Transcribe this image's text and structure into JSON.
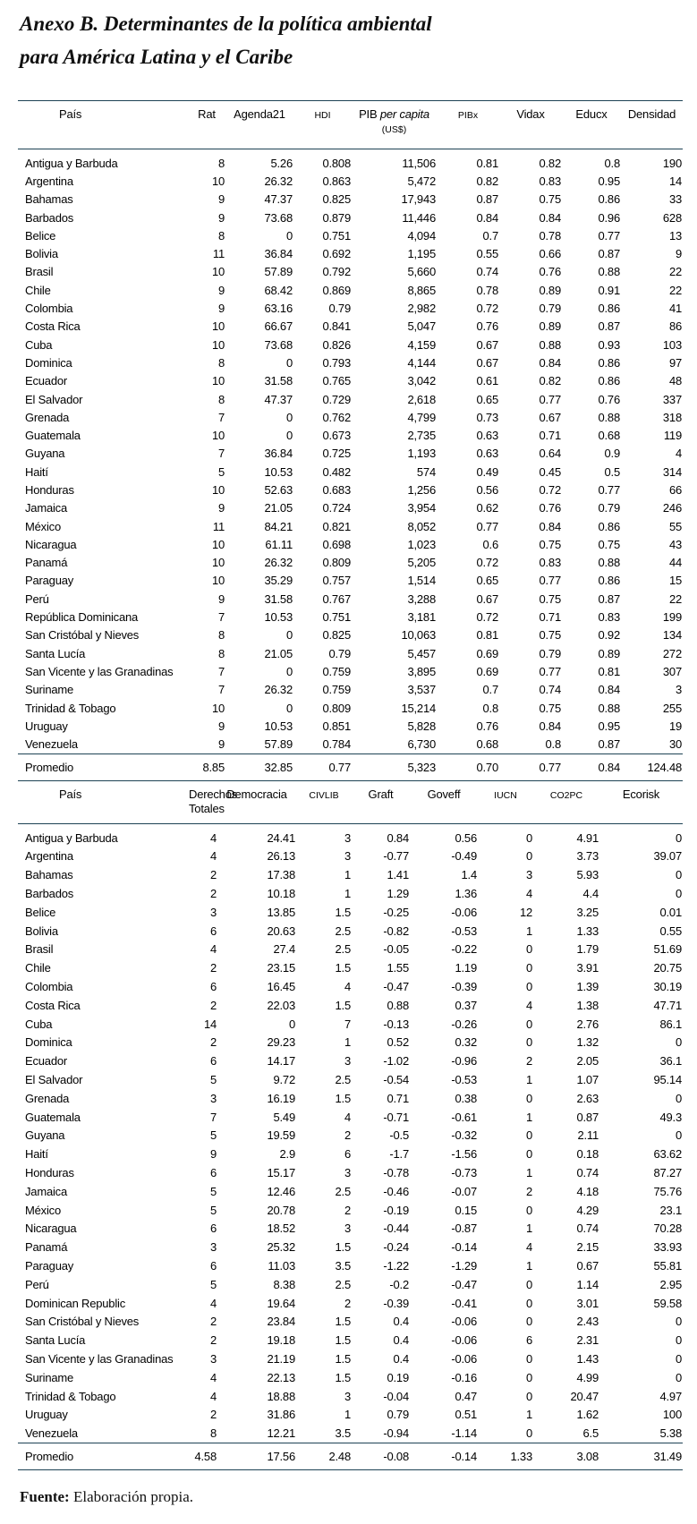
{
  "title": {
    "line1": "Anexo B. Determinantes de la política ambiental",
    "line2": "para América Latina y el Caribe"
  },
  "colors": {
    "rule": "#1d4254",
    "text": "#000000",
    "background": "#ffffff"
  },
  "table1": {
    "col_pais": "País",
    "col_rat": "Rat",
    "col_agenda": "Agenda21",
    "col_hdi": "HDI",
    "col_pib": "PIB",
    "col_pib_italic": "per capita",
    "col_pib_unit": "(US$)",
    "col_pibx": "PIBx",
    "col_vidax": "Vidax",
    "col_educx": "Educx",
    "col_densidad": "Densidad",
    "rows": [
      [
        "Antigua y Barbuda",
        "8",
        "5.26",
        "0.808",
        "11,506",
        "0.81",
        "0.82",
        "0.8",
        "190"
      ],
      [
        "Argentina",
        "10",
        "26.32",
        "0.863",
        "5,472",
        "0.82",
        "0.83",
        "0.95",
        "14"
      ],
      [
        "Bahamas",
        "9",
        "47.37",
        "0.825",
        "17,943",
        "0.87",
        "0.75",
        "0.86",
        "33"
      ],
      [
        "Barbados",
        "9",
        "73.68",
        "0.879",
        "11,446",
        "0.84",
        "0.84",
        "0.96",
        "628"
      ],
      [
        "Belice",
        "8",
        "0",
        "0.751",
        "4,094",
        "0.7",
        "0.78",
        "0.77",
        "13"
      ],
      [
        "Bolivia",
        "11",
        "36.84",
        "0.692",
        "1,195",
        "0.55",
        "0.66",
        "0.87",
        "9"
      ],
      [
        "Brasil",
        "10",
        "57.89",
        "0.792",
        "5,660",
        "0.74",
        "0.76",
        "0.88",
        "22"
      ],
      [
        "Chile",
        "9",
        "68.42",
        "0.869",
        "8,865",
        "0.78",
        "0.89",
        "0.91",
        "22"
      ],
      [
        "Colombia",
        "9",
        "63.16",
        "0.79",
        "2,982",
        "0.72",
        "0.79",
        "0.86",
        "41"
      ],
      [
        "Costa Rica",
        "10",
        "66.67",
        "0.841",
        "5,047",
        "0.76",
        "0.89",
        "0.87",
        "86"
      ],
      [
        "Cuba",
        "10",
        "73.68",
        "0.826",
        "4,159",
        "0.67",
        "0.88",
        "0.93",
        "103"
      ],
      [
        "Dominica",
        "8",
        "0",
        "0.793",
        "4,144",
        "0.67",
        "0.84",
        "0.86",
        "97"
      ],
      [
        "Ecuador",
        "10",
        "31.58",
        "0.765",
        "3,042",
        "0.61",
        "0.82",
        "0.86",
        "48"
      ],
      [
        "El Salvador",
        "8",
        "47.37",
        "0.729",
        "2,618",
        "0.65",
        "0.77",
        "0.76",
        "337"
      ],
      [
        "Grenada",
        "7",
        "0",
        "0.762",
        "4,799",
        "0.73",
        "0.67",
        "0.88",
        "318"
      ],
      [
        "Guatemala",
        "10",
        "0",
        "0.673",
        "2,735",
        "0.63",
        "0.71",
        "0.68",
        "119"
      ],
      [
        "Guyana",
        "7",
        "36.84",
        "0.725",
        "1,193",
        "0.63",
        "0.64",
        "0.9",
        "4"
      ],
      [
        "Haití",
        "5",
        "10.53",
        "0.482",
        "574",
        "0.49",
        "0.45",
        "0.5",
        "314"
      ],
      [
        "Honduras",
        "10",
        "52.63",
        "0.683",
        "1,256",
        "0.56",
        "0.72",
        "0.77",
        "66"
      ],
      [
        "Jamaica",
        "9",
        "21.05",
        "0.724",
        "3,954",
        "0.62",
        "0.76",
        "0.79",
        "246"
      ],
      [
        "México",
        "11",
        "84.21",
        "0.821",
        "8,052",
        "0.77",
        "0.84",
        "0.86",
        "55"
      ],
      [
        "Nicaragua",
        "10",
        "61.11",
        "0.698",
        "1,023",
        "0.6",
        "0.75",
        "0.75",
        "43"
      ],
      [
        "Panamá",
        "10",
        "26.32",
        "0.809",
        "5,205",
        "0.72",
        "0.83",
        "0.88",
        "44"
      ],
      [
        "Paraguay",
        "10",
        "35.29",
        "0.757",
        "1,514",
        "0.65",
        "0.77",
        "0.86",
        "15"
      ],
      [
        "Perú",
        "9",
        "31.58",
        "0.767",
        "3,288",
        "0.67",
        "0.75",
        "0.87",
        "22"
      ],
      [
        "República Dominicana",
        "7",
        "10.53",
        "0.751",
        "3,181",
        "0.72",
        "0.71",
        "0.83",
        "199"
      ],
      [
        "San Cristóbal y Nieves",
        "8",
        "0",
        "0.825",
        "10,063",
        "0.81",
        "0.75",
        "0.92",
        "134"
      ],
      [
        "Santa Lucía",
        "8",
        "21.05",
        "0.79",
        "5,457",
        "0.69",
        "0.79",
        "0.89",
        "272"
      ],
      [
        "San Vicente y las Granadinas",
        "7",
        "0",
        "0.759",
        "3,895",
        "0.69",
        "0.77",
        "0.81",
        "307"
      ],
      [
        "Suriname",
        "7",
        "26.32",
        "0.759",
        "3,537",
        "0.7",
        "0.74",
        "0.84",
        "3"
      ],
      [
        "Trinidad & Tobago",
        "10",
        "0",
        "0.809",
        "15,214",
        "0.8",
        "0.75",
        "0.88",
        "255"
      ],
      [
        "Uruguay",
        "9",
        "10.53",
        "0.851",
        "5,828",
        "0.76",
        "0.84",
        "0.95",
        "19"
      ],
      [
        "Venezuela",
        "9",
        "57.89",
        "0.784",
        "6,730",
        "0.68",
        "0.8",
        "0.87",
        "30"
      ]
    ],
    "promedio": [
      "Promedio",
      "8.85",
      "32.85",
      "0.77",
      "5,323",
      "0.70",
      "0.77",
      "0.84",
      "124.48"
    ]
  },
  "table2": {
    "col_pais": "País",
    "col_derechos_1": "Derechos",
    "col_derechos_2": "Totales",
    "col_democracia": "Democracia",
    "col_civlib": "CIVLIB",
    "col_graft": "Graft",
    "col_goveff": "Goveff",
    "col_iucn": "IUCN",
    "col_co2pc": "CO2PC",
    "col_ecorisk": "Ecorisk",
    "rows": [
      [
        "Antigua y Barbuda",
        "4",
        "24.41",
        "3",
        "0.84",
        "0.56",
        "0",
        "4.91",
        "0"
      ],
      [
        "Argentina",
        "4",
        "26.13",
        "3",
        "-0.77",
        "-0.49",
        "0",
        "3.73",
        "39.07"
      ],
      [
        "Bahamas",
        "2",
        "17.38",
        "1",
        "1.41",
        "1.4",
        "3",
        "5.93",
        "0"
      ],
      [
        "Barbados",
        "2",
        "10.18",
        "1",
        "1.29",
        "1.36",
        "4",
        "4.4",
        "0"
      ],
      [
        "Belice",
        "3",
        "13.85",
        "1.5",
        "-0.25",
        "-0.06",
        "12",
        "3.25",
        "0.01"
      ],
      [
        "Bolivia",
        "6",
        "20.63",
        "2.5",
        "-0.82",
        "-0.53",
        "1",
        "1.33",
        "0.55"
      ],
      [
        "Brasil",
        "4",
        "27.4",
        "2.5",
        "-0.05",
        "-0.22",
        "0",
        "1.79",
        "51.69"
      ],
      [
        "Chile",
        "2",
        "23.15",
        "1.5",
        "1.55",
        "1.19",
        "0",
        "3.91",
        "20.75"
      ],
      [
        "Colombia",
        "6",
        "16.45",
        "4",
        "-0.47",
        "-0.39",
        "0",
        "1.39",
        "30.19"
      ],
      [
        "Costa Rica",
        "2",
        "22.03",
        "1.5",
        "0.88",
        "0.37",
        "4",
        "1.38",
        "47.71"
      ],
      [
        "Cuba",
        "14",
        "0",
        "7",
        "-0.13",
        "-0.26",
        "0",
        "2.76",
        "86.1"
      ],
      [
        "Dominica",
        "2",
        "29.23",
        "1",
        "0.52",
        "0.32",
        "0",
        "1.32",
        "0"
      ],
      [
        "Ecuador",
        "6",
        "14.17",
        "3",
        "-1.02",
        "-0.96",
        "2",
        "2.05",
        "36.1"
      ],
      [
        "El Salvador",
        "5",
        "9.72",
        "2.5",
        "-0.54",
        "-0.53",
        "1",
        "1.07",
        "95.14"
      ],
      [
        "Grenada",
        "3",
        "16.19",
        "1.5",
        "0.71",
        "0.38",
        "0",
        "2.63",
        "0"
      ],
      [
        "Guatemala",
        "7",
        "5.49",
        "4",
        "-0.71",
        "-0.61",
        "1",
        "0.87",
        "49.3"
      ],
      [
        "Guyana",
        "5",
        "19.59",
        "2",
        "-0.5",
        "-0.32",
        "0",
        "2.11",
        "0"
      ],
      [
        "Haití",
        "9",
        "2.9",
        "6",
        "-1.7",
        "-1.56",
        "0",
        "0.18",
        "63.62"
      ],
      [
        "Honduras",
        "6",
        "15.17",
        "3",
        "-0.78",
        "-0.73",
        "1",
        "0.74",
        "87.27"
      ],
      [
        "Jamaica",
        "5",
        "12.46",
        "2.5",
        "-0.46",
        "-0.07",
        "2",
        "4.18",
        "75.76"
      ],
      [
        "México",
        "5",
        "20.78",
        "2",
        "-0.19",
        "0.15",
        "0",
        "4.29",
        "23.1"
      ],
      [
        "Nicaragua",
        "6",
        "18.52",
        "3",
        "-0.44",
        "-0.87",
        "1",
        "0.74",
        "70.28"
      ],
      [
        "Panamá",
        "3",
        "25.32",
        "1.5",
        "-0.24",
        "-0.14",
        "4",
        "2.15",
        "33.93"
      ],
      [
        "Paraguay",
        "6",
        "11.03",
        "3.5",
        "-1.22",
        "-1.29",
        "1",
        "0.67",
        "55.81"
      ],
      [
        "Perú",
        "5",
        "8.38",
        "2.5",
        "-0.2",
        "-0.47",
        "0",
        "1.14",
        "2.95"
      ],
      [
        "Dominican Republic",
        "4",
        "19.64",
        "2",
        "-0.39",
        "-0.41",
        "0",
        "3.01",
        "59.58"
      ],
      [
        "San Cristóbal y Nieves",
        "2",
        "23.84",
        "1.5",
        "0.4",
        "-0.06",
        "0",
        "2.43",
        "0"
      ],
      [
        "Santa Lucía",
        "2",
        "19.18",
        "1.5",
        "0.4",
        "-0.06",
        "6",
        "2.31",
        "0"
      ],
      [
        "San Vicente y las Granadinas",
        "3",
        "21.19",
        "1.5",
        "0.4",
        "-0.06",
        "0",
        "1.43",
        "0"
      ],
      [
        "Suriname",
        "4",
        "22.13",
        "1.5",
        "0.19",
        "-0.16",
        "0",
        "4.99",
        "0"
      ],
      [
        "Trinidad & Tobago",
        "4",
        "18.88",
        "3",
        "-0.04",
        "0.47",
        "0",
        "20.47",
        "4.97"
      ],
      [
        "Uruguay",
        "2",
        "31.86",
        "1",
        "0.79",
        "0.51",
        "1",
        "1.62",
        "100"
      ],
      [
        "Venezuela",
        "8",
        "12.21",
        "3.5",
        "-0.94",
        "-1.14",
        "0",
        "6.5",
        "5.38"
      ]
    ],
    "promedio": [
      "Promedio",
      "4.58",
      "17.56",
      "2.48",
      "-0.08",
      "-0.14",
      "1.33",
      "3.08",
      "31.49"
    ]
  },
  "footer": {
    "label": "Fuente:",
    "text": "Elaboración propia."
  }
}
